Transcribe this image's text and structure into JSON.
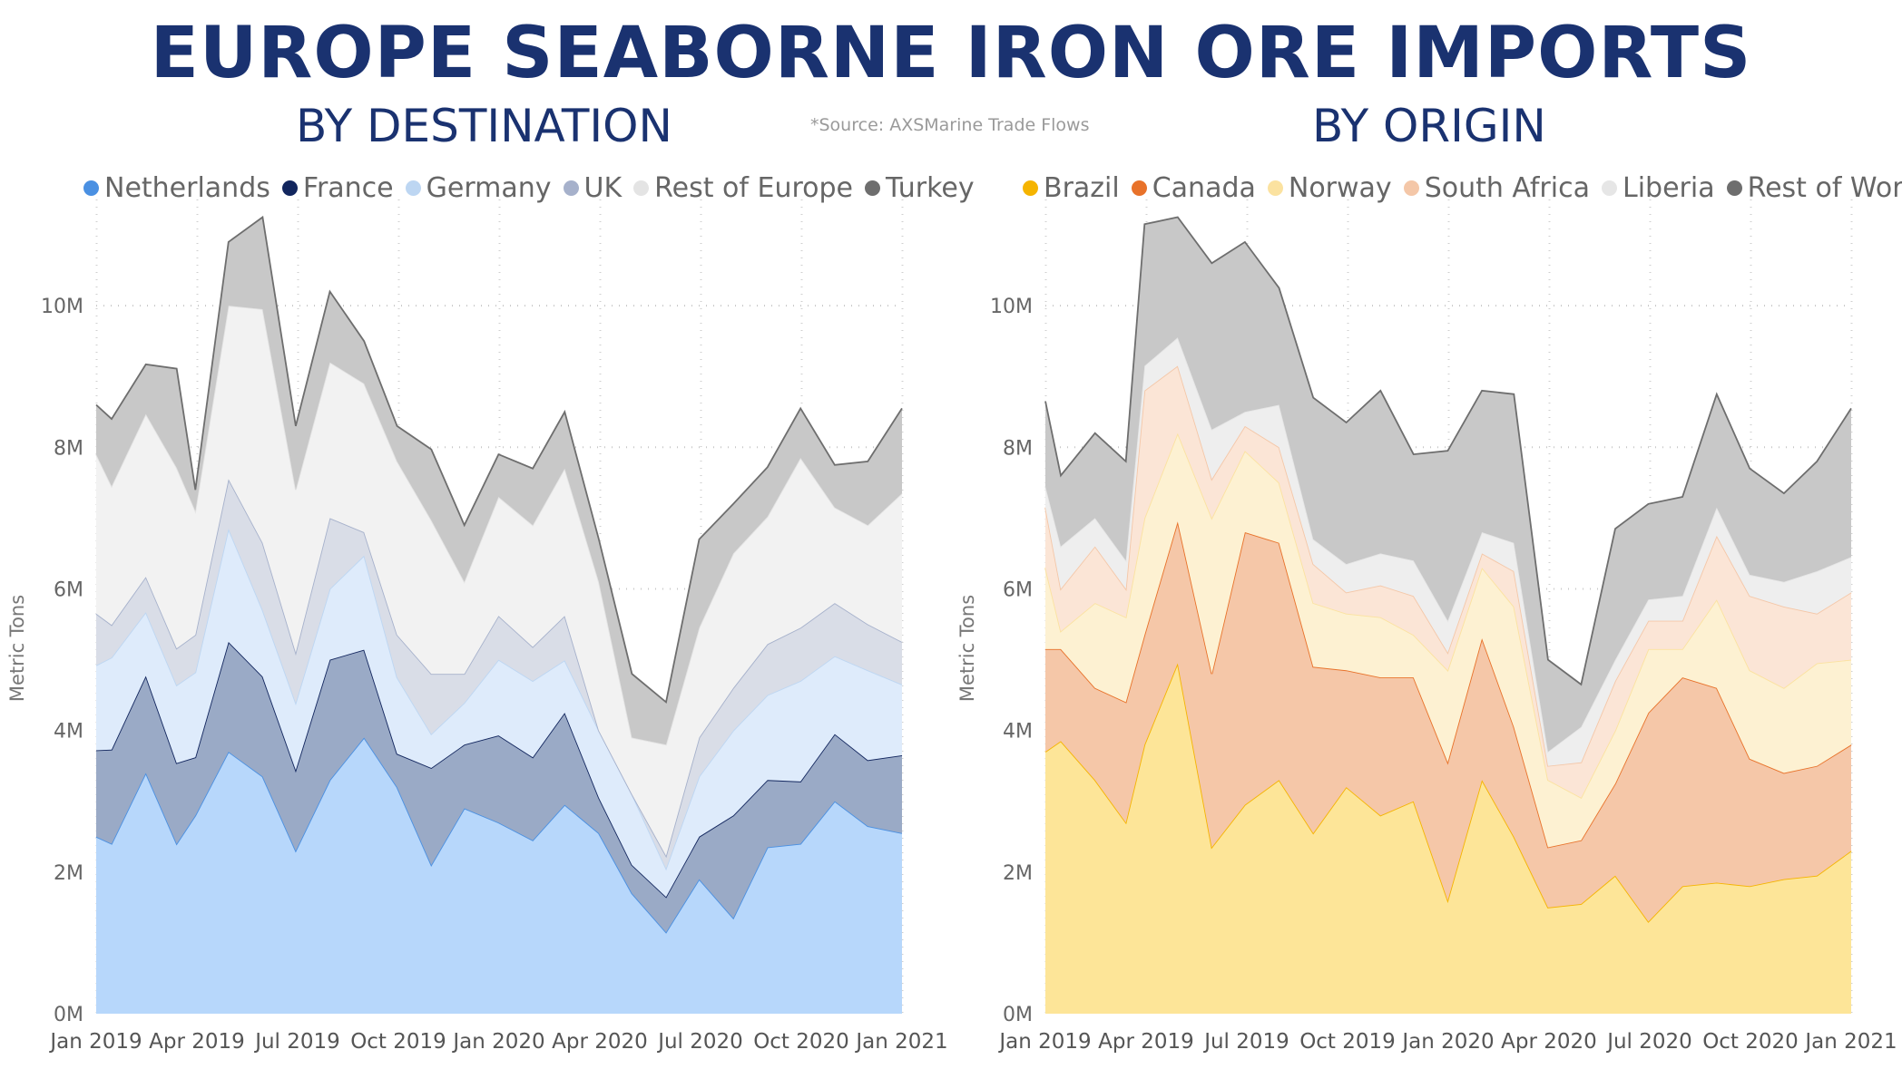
{
  "header": {
    "title": "EUROPE SEABORNE IRON ORE IMPORTS",
    "subtitle_left": "BY DESTINATION",
    "subtitle_right": "BY ORIGIN",
    "source": "*Source: AXSMarine Trade Flows"
  },
  "chart_data": [
    {
      "type": "area",
      "stacked": true,
      "title": "BY DESTINATION",
      "ylabel": "Metric Tons",
      "ylim": [
        0,
        11500000
      ],
      "yticks": [
        0,
        2000000,
        4000000,
        6000000,
        8000000,
        10000000
      ],
      "ytick_labels": [
        "0M",
        "2M",
        "4M",
        "6M",
        "8M",
        "10M"
      ],
      "xtick_labels": [
        "Jan 2019",
        "Apr 2019",
        "Jul 2019",
        "Oct 2019",
        "Jan 2020",
        "Apr 2020",
        "Jul 2020",
        "Oct 2020",
        "Jan 2021"
      ],
      "grid": true,
      "legend_position": "top",
      "x": [
        "2019-01-01",
        "2019-01-15",
        "2019-02-15",
        "2019-03-15",
        "2019-04-01",
        "2019-05-01",
        "2019-06-01",
        "2019-07-01",
        "2019-08-01",
        "2019-09-01",
        "2019-10-01",
        "2019-11-01",
        "2019-12-01",
        "2020-01-01",
        "2020-02-01",
        "2020-03-01",
        "2020-04-01",
        "2020-05-01",
        "2020-06-01",
        "2020-07-01",
        "2020-08-01",
        "2020-09-01",
        "2020-10-01",
        "2020-11-01",
        "2020-12-01",
        "2021-01-01"
      ],
      "series": [
        {
          "name": "Netherlands",
          "color": "#4a90e2",
          "fill": "#b7d7fb",
          "values": [
            2.5,
            2.4,
            3.4,
            2.4,
            2.8,
            3.7,
            3.35,
            2.3,
            3.3,
            3.9,
            3.2,
            2.1,
            2.9,
            2.7,
            2.45,
            2.95,
            2.55,
            1.7,
            1.15,
            1.9,
            1.35,
            2.35,
            2.4,
            3.0,
            2.65,
            2.55
          ]
        },
        {
          "name": "France",
          "color": "#12265e",
          "fill": "#9aaac6",
          "values": [
            1.22,
            1.33,
            1.37,
            1.14,
            0.82,
            1.55,
            1.41,
            1.14,
            1.7,
            1.24,
            0.47,
            1.37,
            0.9,
            1.23,
            1.17,
            1.3,
            0.5,
            0.4,
            0.5,
            0.6,
            1.45,
            0.95,
            0.88,
            0.95,
            0.93,
            1.1
          ]
        },
        {
          "name": "Germany",
          "color": "#bdd6f2",
          "fill": "#deebfb",
          "values": [
            1.2,
            1.3,
            0.9,
            1.1,
            1.2,
            1.6,
            0.94,
            0.95,
            1.0,
            1.33,
            1.08,
            0.48,
            0.59,
            1.07,
            1.08,
            0.74,
            0.95,
            1.0,
            0.4,
            0.85,
            1.2,
            1.2,
            1.42,
            1.1,
            1.27,
            1.0
          ]
        },
        {
          "name": "UK",
          "color": "#a6b1cb",
          "fill": "#d9dde7",
          "values": [
            0.73,
            0.46,
            0.5,
            0.52,
            0.53,
            0.7,
            0.95,
            0.71,
            1.0,
            0.33,
            0.6,
            0.85,
            0.41,
            0.62,
            0.48,
            0.63,
            0.0,
            0.0,
            0.18,
            0.55,
            0.6,
            0.72,
            0.75,
            0.75,
            0.65,
            0.6
          ]
        },
        {
          "name": "Rest of Europe",
          "color": "#e4e4e4",
          "fill": "#f2f2f2",
          "values": [
            2.25,
            1.96,
            2.3,
            2.55,
            1.75,
            2.45,
            3.3,
            2.3,
            2.2,
            2.1,
            2.45,
            2.17,
            1.3,
            1.68,
            1.72,
            2.08,
            2.1,
            0.8,
            1.57,
            1.55,
            1.9,
            1.8,
            2.4,
            1.35,
            1.4,
            2.1
          ]
        },
        {
          "name": "Turkey",
          "color": "#6e6e6e",
          "fill": "#c8c8c8",
          "values": [
            0.7,
            0.95,
            0.7,
            1.4,
            0.3,
            0.9,
            1.3,
            0.9,
            1.0,
            0.6,
            0.5,
            1.0,
            0.8,
            0.6,
            0.8,
            0.8,
            0.6,
            0.9,
            0.6,
            1.25,
            0.7,
            0.7,
            0.7,
            0.6,
            0.9,
            1.2
          ]
        }
      ]
    },
    {
      "type": "area",
      "stacked": true,
      "title": "BY ORIGIN",
      "ylabel": "Metric Tons",
      "ylim": [
        0,
        11500000
      ],
      "yticks": [
        0,
        2000000,
        4000000,
        6000000,
        8000000,
        10000000
      ],
      "ytick_labels": [
        "0M",
        "2M",
        "4M",
        "6M",
        "8M",
        "10M"
      ],
      "xtick_labels": [
        "Jan 2019",
        "Apr 2019",
        "Jul 2019",
        "Oct 2019",
        "Jan 2020",
        "Apr 2020",
        "Jul 2020",
        "Oct 2020",
        "Jan 2021"
      ],
      "grid": true,
      "legend_position": "top",
      "x": [
        "2019-01-01",
        "2019-01-15",
        "2019-02-15",
        "2019-03-15",
        "2019-04-01",
        "2019-05-01",
        "2019-06-01",
        "2019-07-01",
        "2019-08-01",
        "2019-09-01",
        "2019-10-01",
        "2019-11-01",
        "2019-12-01",
        "2020-01-01",
        "2020-02-01",
        "2020-03-01",
        "2020-04-01",
        "2020-05-01",
        "2020-06-01",
        "2020-07-01",
        "2020-08-01",
        "2020-09-01",
        "2020-10-01",
        "2020-11-01",
        "2020-12-01",
        "2021-01-01"
      ],
      "series": [
        {
          "name": "Brazil",
          "color": "#f5b400",
          "fill": "#fde598",
          "values": [
            3.7,
            3.85,
            3.3,
            2.7,
            3.8,
            4.95,
            2.35,
            2.95,
            3.3,
            2.55,
            3.2,
            2.8,
            3.0,
            1.6,
            3.3,
            2.5,
            1.5,
            1.55,
            1.95,
            1.3,
            1.8,
            1.85,
            1.8,
            1.9,
            1.95,
            2.3
          ]
        },
        {
          "name": "Canada",
          "color": "#e8722a",
          "fill": "#f5c7a8",
          "values": [
            1.45,
            1.3,
            1.3,
            1.7,
            1.55,
            2.0,
            2.45,
            3.85,
            3.35,
            2.35,
            1.65,
            1.95,
            1.75,
            1.95,
            2.0,
            1.55,
            0.85,
            0.9,
            1.3,
            2.95,
            2.95,
            2.75,
            1.8,
            1.5,
            1.55,
            1.5
          ]
        },
        {
          "name": "Norway",
          "color": "#fbe2a0",
          "fill": "#fdf1d2",
          "values": [
            1.15,
            0.25,
            1.2,
            1.2,
            1.65,
            1.25,
            2.2,
            1.15,
            0.85,
            0.9,
            0.8,
            0.85,
            0.6,
            1.3,
            1.0,
            1.7,
            0.95,
            0.6,
            0.75,
            0.9,
            0.4,
            1.25,
            1.25,
            1.2,
            1.45,
            1.2
          ]
        },
        {
          "name": "South Africa",
          "color": "#f4c7a8",
          "fill": "#fbe5d6",
          "values": [
            0.85,
            0.6,
            0.8,
            0.4,
            1.8,
            0.95,
            0.55,
            0.35,
            0.5,
            0.55,
            0.3,
            0.45,
            0.55,
            0.25,
            0.2,
            0.5,
            0.2,
            0.5,
            0.7,
            0.4,
            0.4,
            0.9,
            1.05,
            1.15,
            0.7,
            0.95
          ]
        },
        {
          "name": "Liberia",
          "color": "#e6e6e6",
          "fill": "#eeeeee",
          "values": [
            0.3,
            0.6,
            0.4,
            0.4,
            0.35,
            0.4,
            0.7,
            0.2,
            0.6,
            0.35,
            0.4,
            0.45,
            0.5,
            0.45,
            0.3,
            0.4,
            0.2,
            0.5,
            0.3,
            0.3,
            0.35,
            0.4,
            0.3,
            0.35,
            0.6,
            0.5
          ]
        },
        {
          "name": "Rest of World",
          "color": "#6e6e6e",
          "fill": "#c8c8c8",
          "values": [
            1.2,
            1.0,
            1.2,
            1.4,
            2.0,
            1.7,
            2.35,
            2.4,
            1.65,
            2.0,
            2.0,
            2.3,
            1.5,
            2.4,
            2.0,
            2.1,
            1.3,
            0.6,
            1.85,
            1.35,
            1.4,
            1.6,
            1.5,
            1.25,
            1.55,
            2.1
          ]
        }
      ]
    }
  ]
}
